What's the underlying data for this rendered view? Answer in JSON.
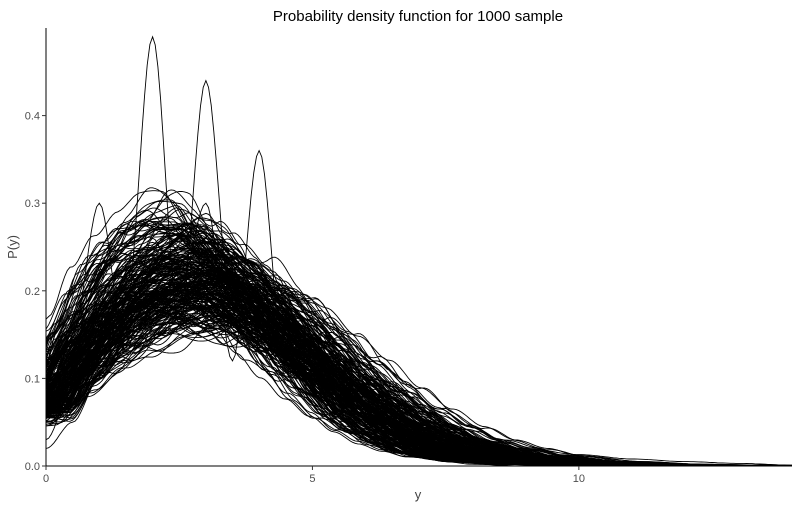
{
  "chart_data": {
    "type": "line",
    "title": "Probability density function for 1000 sample",
    "xlabel": "y",
    "ylabel": "P(y)",
    "xlim": [
      0,
      14
    ],
    "ylim": [
      0,
      0.5
    ],
    "x_ticks": [
      0,
      5,
      10
    ],
    "x_tick_labels": [
      "0",
      "5",
      "10"
    ],
    "y_ticks": [
      0.0,
      0.1,
      0.2,
      0.3,
      0.4
    ],
    "y_tick_labels": [
      "0.0",
      "0.1",
      "0.2",
      "0.3",
      "0.4"
    ],
    "grid": false,
    "legend": "none",
    "line_color": "#000000",
    "series_count": 1000,
    "representative_series": [
      {
        "x": [
          0,
          0.5,
          1,
          1.5,
          2,
          2.5,
          3,
          3.5,
          4,
          4.5,
          5,
          5.5,
          6,
          6.5,
          7,
          7.5,
          8,
          9,
          10,
          11,
          12,
          13,
          14
        ],
        "y": [
          0.07,
          0.12,
          0.16,
          0.19,
          0.21,
          0.22,
          0.22,
          0.2,
          0.18,
          0.15,
          0.12,
          0.09,
          0.065,
          0.045,
          0.03,
          0.02,
          0.012,
          0.005,
          0.002,
          0.001,
          0,
          0,
          0
        ]
      },
      {
        "x": [
          0,
          0.5,
          1,
          1.5,
          2,
          2.5,
          3,
          3.5,
          4,
          4.5,
          5,
          5.5,
          6,
          6.5,
          7,
          7.5,
          8,
          9,
          10,
          11,
          12,
          13,
          14
        ],
        "y": [
          0.03,
          0.09,
          0.14,
          0.18,
          0.49,
          0.16,
          0.44,
          0.17,
          0.17,
          0.13,
          0.1,
          0.07,
          0.05,
          0.035,
          0.02,
          0.013,
          0.008,
          0.003,
          0.001,
          0,
          0,
          0,
          0
        ]
      },
      {
        "x": [
          0,
          0.5,
          1,
          1.5,
          2,
          2.5,
          3,
          3.5,
          4,
          4.5,
          5,
          5.5,
          6,
          6.5,
          7,
          7.5,
          8,
          9,
          10,
          11,
          12,
          13,
          14
        ],
        "y": [
          0.1,
          0.15,
          0.3,
          0.13,
          0.26,
          0.2,
          0.3,
          0.12,
          0.36,
          0.1,
          0.13,
          0.1,
          0.07,
          0.05,
          0.03,
          0.02,
          0.015,
          0.008,
          0.004,
          0.002,
          0.001,
          0,
          0
        ]
      },
      {
        "x": [
          0,
          0.5,
          1,
          1.5,
          2,
          2.5,
          3,
          3.5,
          4,
          4.5,
          5,
          5.5,
          6,
          6.5,
          7,
          7.5,
          8,
          9,
          10,
          11,
          12,
          13,
          14
        ],
        "y": [
          0.02,
          0.05,
          0.1,
          0.14,
          0.17,
          0.18,
          0.18,
          0.17,
          0.15,
          0.13,
          0.11,
          0.09,
          0.07,
          0.055,
          0.045,
          0.035,
          0.028,
          0.02,
          0.013,
          0.008,
          0.005,
          0.003,
          0.001
        ]
      },
      {
        "x": [
          0,
          0.5,
          1,
          1.5,
          2,
          2.5,
          3,
          3.5,
          4,
          4.5,
          5,
          5.5,
          6,
          6.5,
          7,
          7.5,
          8,
          9,
          10,
          11,
          12,
          13,
          14
        ],
        "y": [
          0.11,
          0.17,
          0.22,
          0.25,
          0.27,
          0.27,
          0.26,
          0.23,
          0.19,
          0.14,
          0.1,
          0.06,
          0.035,
          0.02,
          0.01,
          0.005,
          0.002,
          0,
          0,
          0,
          0,
          0,
          0
        ]
      }
    ]
  }
}
